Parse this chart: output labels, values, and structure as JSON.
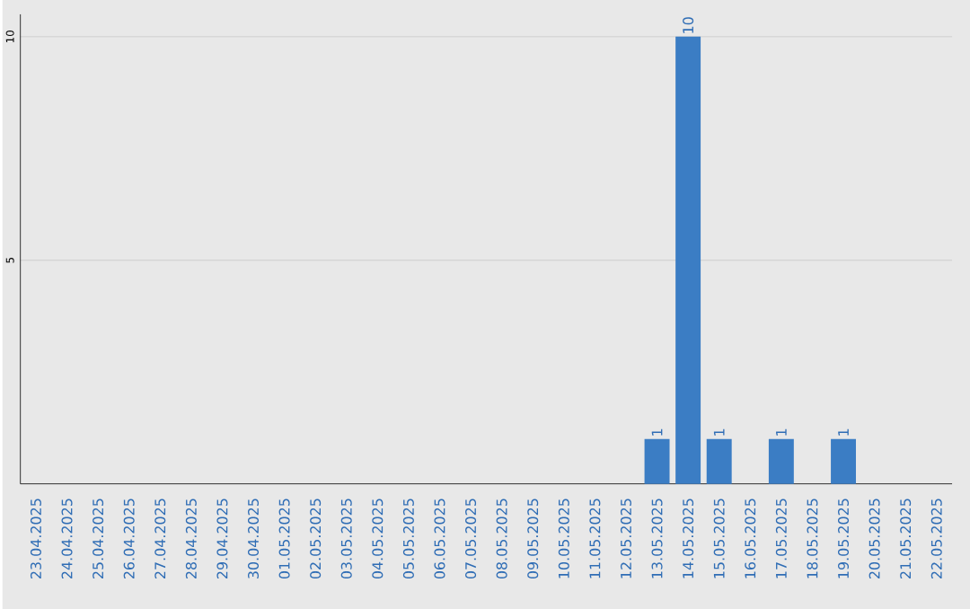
{
  "chart_data": {
    "type": "bar",
    "categories": [
      "23.04.2025",
      "24.04.2025",
      "25.04.2025",
      "26.04.2025",
      "27.04.2025",
      "28.04.2025",
      "29.04.2025",
      "30.04.2025",
      "01.05.2025",
      "02.05.2025",
      "03.05.2025",
      "04.05.2025",
      "05.05.2025",
      "06.05.2025",
      "07.05.2025",
      "08.05.2025",
      "09.05.2025",
      "10.05.2025",
      "11.05.2025",
      "12.05.2025",
      "13.05.2025",
      "14.05.2025",
      "15.05.2025",
      "16.05.2025",
      "17.05.2025",
      "18.05.2025",
      "19.05.2025",
      "20.05.2025",
      "21.05.2025",
      "22.05.2025"
    ],
    "values": [
      0,
      0,
      0,
      0,
      0,
      0,
      0,
      0,
      0,
      0,
      0,
      0,
      0,
      0,
      0,
      0,
      0,
      0,
      0,
      0,
      1,
      10,
      1,
      0,
      1,
      0,
      1,
      0,
      0,
      0
    ],
    "value_labels": [
      null,
      null,
      null,
      null,
      null,
      null,
      null,
      null,
      null,
      null,
      null,
      null,
      null,
      null,
      null,
      null,
      null,
      null,
      null,
      null,
      "1",
      "10",
      "1",
      null,
      "1",
      null,
      "1",
      null,
      null,
      null
    ],
    "color": "#3b7dc4",
    "ylim": [
      0,
      10.5
    ],
    "yticks": [
      5,
      10
    ],
    "grid": "y"
  }
}
